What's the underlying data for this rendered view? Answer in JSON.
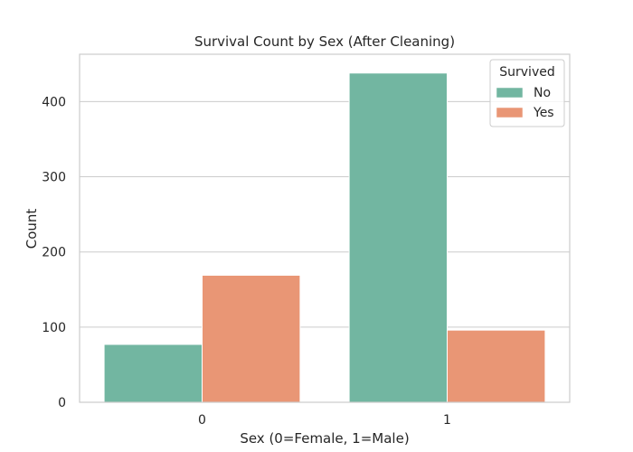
{
  "chart_data": {
    "type": "bar",
    "title": "Survival Count by Sex (After Cleaning)",
    "xlabel": "Sex (0=Female, 1=Male)",
    "ylabel": "Count",
    "categories": [
      "0",
      "1"
    ],
    "series": [
      {
        "name": "No",
        "values": [
          77,
          438
        ],
        "color": "#72b6a1"
      },
      {
        "name": "Yes",
        "values": [
          169,
          96
        ],
        "color": "#e99675"
      }
    ],
    "ylim": [
      0,
      463
    ],
    "yticks": [
      "0",
      "100",
      "200",
      "300",
      "400"
    ],
    "grid": true,
    "legend": {
      "title": "Survived",
      "placement": "top-right"
    }
  }
}
